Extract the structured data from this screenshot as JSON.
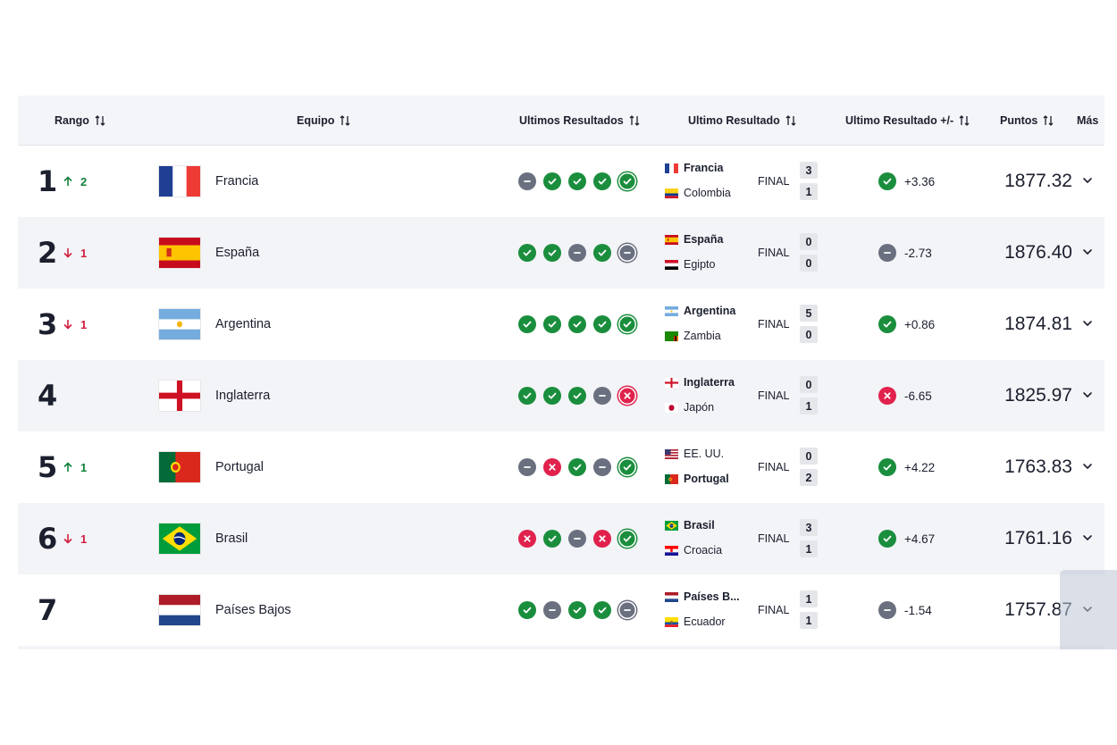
{
  "header": {
    "rank": "Rango",
    "team": "Equipo",
    "last_results": "Ultimos Resultados",
    "last_result": "Ultimo Resultado",
    "last_result_pm": "Ultimo Resultado +/-",
    "points": "Puntos",
    "more": "Más"
  },
  "final_label": "FINAL",
  "rows": [
    {
      "rank": "1",
      "change": "2",
      "dir": "up",
      "team": "Francia",
      "flag": "france",
      "results": [
        "D",
        "W",
        "W",
        "W",
        "W"
      ],
      "match": {
        "team1": "Francia",
        "flag1": "france",
        "team2": "Colombia",
        "flag2": "colombia",
        "score1": "3",
        "score2": "1",
        "winner": 1
      },
      "last": "W",
      "delta": "+3.36",
      "points": "1877.32"
    },
    {
      "rank": "2",
      "change": "1",
      "dir": "down",
      "team": "España",
      "flag": "spain",
      "results": [
        "W",
        "W",
        "D",
        "W",
        "D"
      ],
      "match": {
        "team1": "España",
        "flag1": "spain",
        "team2": "Egipto",
        "flag2": "egypt",
        "score1": "0",
        "score2": "0",
        "winner": 1
      },
      "last": "D",
      "delta": "-2.73",
      "points": "1876.40"
    },
    {
      "rank": "3",
      "change": "1",
      "dir": "down",
      "team": "Argentina",
      "flag": "argentina",
      "results": [
        "W",
        "W",
        "W",
        "W",
        "W"
      ],
      "match": {
        "team1": "Argentina",
        "flag1": "argentina",
        "team2": "Zambia",
        "flag2": "zambia",
        "score1": "5",
        "score2": "0",
        "winner": 1
      },
      "last": "W",
      "delta": "+0.86",
      "points": "1874.81"
    },
    {
      "rank": "4",
      "change": "",
      "dir": "none",
      "team": "Inglaterra",
      "flag": "england",
      "results": [
        "W",
        "W",
        "W",
        "D",
        "L"
      ],
      "match": {
        "team1": "Inglaterra",
        "flag1": "england",
        "team2": "Japón",
        "flag2": "japan",
        "score1": "0",
        "score2": "1",
        "winner": 1
      },
      "last": "L",
      "delta": "-6.65",
      "points": "1825.97"
    },
    {
      "rank": "5",
      "change": "1",
      "dir": "up",
      "team": "Portugal",
      "flag": "portugal",
      "results": [
        "D",
        "L",
        "W",
        "D",
        "W"
      ],
      "match": {
        "team1": "EE. UU.",
        "flag1": "usa",
        "team2": "Portugal",
        "flag2": "portugal",
        "score1": "0",
        "score2": "2",
        "winner": 2
      },
      "last": "W",
      "delta": "+4.22",
      "points": "1763.83"
    },
    {
      "rank": "6",
      "change": "1",
      "dir": "down",
      "team": "Brasil",
      "flag": "brazil",
      "results": [
        "L",
        "W",
        "D",
        "L",
        "W"
      ],
      "match": {
        "team1": "Brasil",
        "flag1": "brazil",
        "team2": "Croacia",
        "flag2": "croatia",
        "score1": "3",
        "score2": "1",
        "winner": 1
      },
      "last": "W",
      "delta": "+4.67",
      "points": "1761.16"
    },
    {
      "rank": "7",
      "change": "",
      "dir": "none",
      "team": "Países Bajos",
      "flag": "netherlands",
      "results": [
        "W",
        "D",
        "W",
        "W",
        "D"
      ],
      "match": {
        "team1": "Países B...",
        "flag1": "netherlands",
        "team2": "Ecuador",
        "flag2": "ecuador",
        "score1": "1",
        "score2": "1",
        "winner": 1
      },
      "last": "D",
      "delta": "-1.54",
      "points": "1757.87"
    }
  ]
}
